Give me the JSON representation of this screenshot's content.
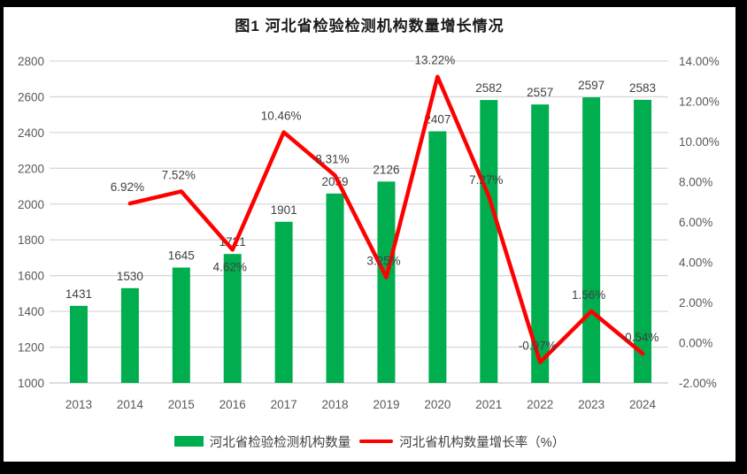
{
  "title": "图1 河北省检验检测机构数量增长情况",
  "legend": {
    "bars": "河北省检验检测机构数量",
    "line": "河北省机构数量增长率（%）"
  },
  "chart_data": {
    "type": "bar+line combo",
    "title": "图1 河北省检验检测机构数量增长情况",
    "categories": [
      "2013",
      "2014",
      "2015",
      "2016",
      "2017",
      "2018",
      "2019",
      "2020",
      "2021",
      "2022",
      "2023",
      "2024"
    ],
    "series": [
      {
        "name": "河北省检验检测机构数量",
        "type": "bar",
        "axis": "left",
        "values": [
          1431,
          1530,
          1645,
          1721,
          1901,
          2059,
          2126,
          2407,
          2582,
          2557,
          2597,
          2583
        ]
      },
      {
        "name": "河北省机构数量增长率（%）",
        "type": "line",
        "axis": "right",
        "values": [
          null,
          6.92,
          7.52,
          4.62,
          10.46,
          8.31,
          3.25,
          13.22,
          7.27,
          -0.97,
          1.56,
          -0.54
        ]
      }
    ],
    "bar_value_labels": [
      "1431",
      "1530",
      "1645",
      "1721",
      "1901",
      "2059",
      "2126",
      "2407",
      "2582",
      "2557",
      "2597",
      "2583"
    ],
    "rate_value_labels": [
      null,
      "6.92%",
      "7.52%",
      "4.62%",
      "10.46%",
      "8.31%",
      "3.25%",
      "13.22%",
      "7.27%",
      "-0.97%",
      "1.56%",
      "-0.54%"
    ],
    "rate_labels_below_indices": [
      3
    ],
    "left_axis": {
      "min": 1000,
      "max": 2800,
      "step": 200,
      "ticks": [
        "1000",
        "1200",
        "1400",
        "1600",
        "1800",
        "2000",
        "2200",
        "2400",
        "2600",
        "2800"
      ]
    },
    "right_axis": {
      "min": -2,
      "max": 14,
      "step": 2,
      "ticks": [
        "-2.00%",
        "0.00%",
        "2.00%",
        "4.00%",
        "6.00%",
        "8.00%",
        "10.00%",
        "12.00%",
        "14.00%"
      ]
    },
    "grid": "horizontal",
    "legend_position": "bottom",
    "colors": {
      "bar": "#00AE50",
      "line": "#FF0000",
      "grid": "#D9D9D9",
      "axis_line": "#C6C6C6",
      "tick_text": "#595959",
      "data_label": "#404040"
    }
  }
}
